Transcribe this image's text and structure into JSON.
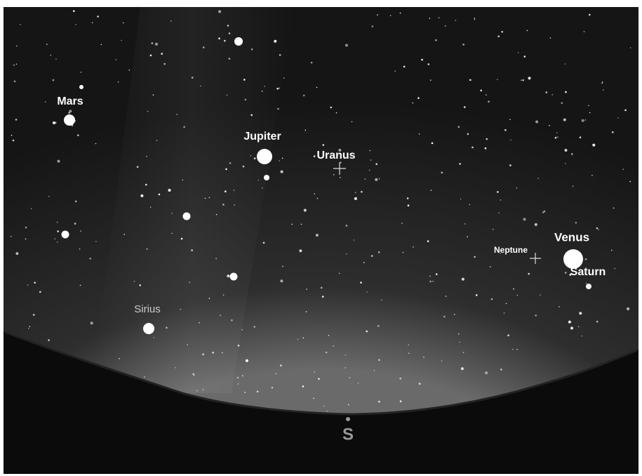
{
  "objects": [
    {
      "label": "Mars"
    },
    {
      "label": "Jupiter"
    },
    {
      "label": "Uranus"
    },
    {
      "label": "Neptune"
    },
    {
      "label": "Venus"
    },
    {
      "label": "Saturn"
    },
    {
      "label": "Sirius"
    }
  ],
  "compass": "S"
}
